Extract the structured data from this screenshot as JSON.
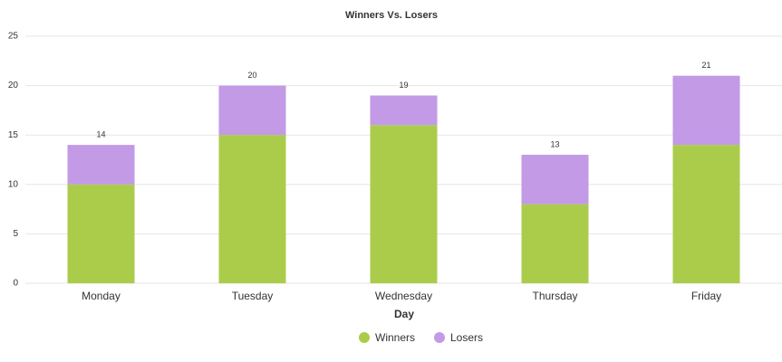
{
  "chart_data": {
    "type": "stacked_bar",
    "title": "Winners Vs. Losers",
    "x_label": "Day",
    "categories": [
      "Monday",
      "Tuesday",
      "Wednesday",
      "Thursday",
      "Friday"
    ],
    "series": [
      {
        "name": "Winners",
        "color": "#abcc4b",
        "values": [
          10,
          15,
          16,
          8,
          14
        ]
      },
      {
        "name": "Losers",
        "color": "#c39ae6",
        "values": [
          4,
          5,
          3,
          5,
          7
        ]
      }
    ],
    "totals": [
      14,
      20,
      19,
      13,
      21
    ],
    "ylim": [
      0,
      25
    ],
    "yticks": [
      0,
      5,
      10,
      15,
      20,
      25
    ],
    "grid": true
  }
}
